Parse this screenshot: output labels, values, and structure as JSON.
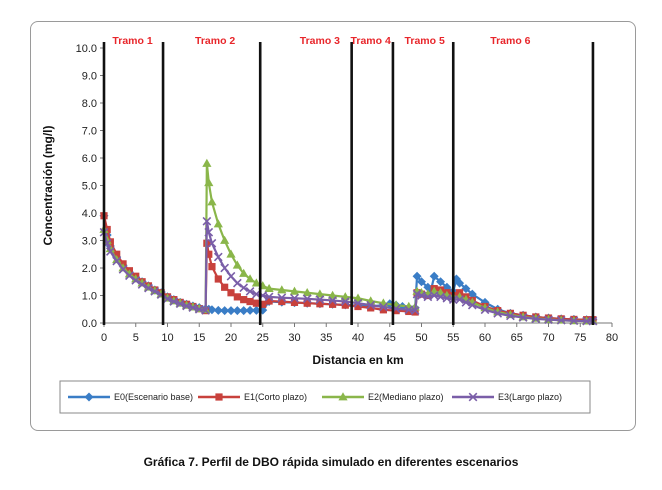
{
  "caption": "Gráfica 7. Perfil de DBO rápida simulado en diferentes escenarios",
  "chart_data": {
    "type": "line",
    "title": "",
    "xlabel": "Distancia en km",
    "ylabel": "Concentración (mg/l)",
    "xlim": [
      0,
      80
    ],
    "ylim": [
      0,
      10
    ],
    "xticks": [
      "0",
      "5",
      "10",
      "15",
      "20",
      "25",
      "30",
      "35",
      "40",
      "45",
      "50",
      "55",
      "60",
      "65",
      "70",
      "75",
      "80"
    ],
    "yticks": [
      "0.0",
      "1.0",
      "2.0",
      "3.0",
      "4.0",
      "5.0",
      "6.0",
      "7.0",
      "8.0",
      "9.0",
      "10.0"
    ],
    "grid": false,
    "legend_position": "bottom",
    "tramo_color": "#e8262b",
    "boundaries": [
      0,
      9.3,
      24.6,
      39,
      45.5,
      55,
      77
    ],
    "tramos": [
      {
        "label": "Tramo 1",
        "x": 4.5
      },
      {
        "label": "Tramo 2",
        "x": 17.5
      },
      {
        "label": "Tramo 3",
        "x": 34
      },
      {
        "label": "Tramo 4",
        "x": 42
      },
      {
        "label": "Tramo 5",
        "x": 50.5
      },
      {
        "label": "Tramo 6",
        "x": 64
      }
    ],
    "series": [
      {
        "name": "E0(Escenario base)",
        "color": "#3a7dc6",
        "marker": "diamond",
        "points": [
          [
            0,
            3.9
          ],
          [
            0.5,
            3.2
          ],
          [
            1,
            2.8
          ],
          [
            2,
            2.4
          ],
          [
            3,
            2.1
          ],
          [
            4,
            1.85
          ],
          [
            5,
            1.65
          ],
          [
            6,
            1.5
          ],
          [
            7,
            1.35
          ],
          [
            8,
            1.2
          ],
          [
            9,
            1.1
          ],
          [
            10,
            0.95
          ],
          [
            11,
            0.85
          ],
          [
            12,
            0.75
          ],
          [
            13,
            0.68
          ],
          [
            14,
            0.62
          ],
          [
            15,
            0.56
          ],
          [
            16,
            0.52
          ],
          [
            16.5,
            0.5
          ],
          [
            17,
            0.48
          ],
          [
            18,
            0.46
          ],
          [
            19,
            0.45
          ],
          [
            20,
            0.45
          ],
          [
            21,
            0.45
          ],
          [
            22,
            0.45
          ],
          [
            23,
            0.46
          ],
          [
            24,
            0.46
          ],
          [
            25,
            0.47
          ],
          [
            26,
            0.78
          ],
          [
            28,
            0.76
          ],
          [
            30,
            0.74
          ],
          [
            32,
            0.72
          ],
          [
            34,
            0.7
          ],
          [
            36,
            0.68
          ],
          [
            38,
            0.66
          ],
          [
            40,
            0.63
          ],
          [
            42,
            0.6
          ],
          [
            44,
            0.65
          ],
          [
            45,
            0.7
          ],
          [
            46,
            0.65
          ],
          [
            47,
            0.6
          ],
          [
            48,
            0.56
          ],
          [
            49,
            0.55
          ],
          [
            49.3,
            1.7
          ],
          [
            50,
            1.5
          ],
          [
            51,
            1.3
          ],
          [
            51.5,
            1.2
          ],
          [
            52,
            1.7
          ],
          [
            53,
            1.5
          ],
          [
            54,
            1.3
          ],
          [
            55,
            1.15
          ],
          [
            55.5,
            1.6
          ],
          [
            56,
            1.45
          ],
          [
            57,
            1.25
          ],
          [
            58,
            1.05
          ],
          [
            60,
            0.75
          ],
          [
            62,
            0.5
          ],
          [
            64,
            0.35
          ],
          [
            66,
            0.28
          ],
          [
            68,
            0.22
          ],
          [
            70,
            0.18
          ],
          [
            72,
            0.15
          ],
          [
            74,
            0.13
          ],
          [
            76,
            0.12
          ],
          [
            77,
            0.12
          ]
        ]
      },
      {
        "name": "E1(Corto plazo)",
        "color": "#c8413c",
        "marker": "square",
        "points": [
          [
            0,
            3.9
          ],
          [
            0.5,
            3.4
          ],
          [
            1,
            2.95
          ],
          [
            2,
            2.5
          ],
          [
            3,
            2.15
          ],
          [
            4,
            1.9
          ],
          [
            5,
            1.7
          ],
          [
            6,
            1.5
          ],
          [
            7,
            1.35
          ],
          [
            8,
            1.2
          ],
          [
            9,
            1.1
          ],
          [
            10,
            0.95
          ],
          [
            11,
            0.85
          ],
          [
            12,
            0.75
          ],
          [
            13,
            0.68
          ],
          [
            14,
            0.6
          ],
          [
            15,
            0.52
          ],
          [
            16,
            0.45
          ],
          [
            16.2,
            2.9
          ],
          [
            16.5,
            2.5
          ],
          [
            17,
            2.05
          ],
          [
            18,
            1.6
          ],
          [
            19,
            1.3
          ],
          [
            20,
            1.1
          ],
          [
            21,
            0.95
          ],
          [
            22,
            0.85
          ],
          [
            23,
            0.78
          ],
          [
            24,
            0.72
          ],
          [
            25,
            0.68
          ],
          [
            26,
            0.8
          ],
          [
            28,
            0.78
          ],
          [
            30,
            0.75
          ],
          [
            32,
            0.72
          ],
          [
            34,
            0.7
          ],
          [
            36,
            0.68
          ],
          [
            38,
            0.65
          ],
          [
            40,
            0.6
          ],
          [
            42,
            0.55
          ],
          [
            44,
            0.48
          ],
          [
            46,
            0.45
          ],
          [
            48,
            0.42
          ],
          [
            49,
            0.4
          ],
          [
            49.3,
            1.1
          ],
          [
            50,
            1.05
          ],
          [
            51,
            1.0
          ],
          [
            52,
            1.25
          ],
          [
            53,
            1.2
          ],
          [
            54,
            1.1
          ],
          [
            55,
            1.0
          ],
          [
            56,
            1.1
          ],
          [
            57,
            0.95
          ],
          [
            58,
            0.82
          ],
          [
            60,
            0.6
          ],
          [
            62,
            0.45
          ],
          [
            64,
            0.35
          ],
          [
            66,
            0.28
          ],
          [
            68,
            0.22
          ],
          [
            70,
            0.18
          ],
          [
            72,
            0.15
          ],
          [
            74,
            0.13
          ],
          [
            76,
            0.12
          ],
          [
            77,
            0.12
          ]
        ]
      },
      {
        "name": "E2(Mediano plazo)",
        "color": "#8ab64a",
        "marker": "triangle",
        "points": [
          [
            0,
            3.4
          ],
          [
            0.5,
            3.0
          ],
          [
            1,
            2.7
          ],
          [
            2,
            2.3
          ],
          [
            3,
            2.0
          ],
          [
            4,
            1.78
          ],
          [
            5,
            1.6
          ],
          [
            6,
            1.45
          ],
          [
            7,
            1.3
          ],
          [
            8,
            1.17
          ],
          [
            9,
            1.05
          ],
          [
            10,
            0.9
          ],
          [
            11,
            0.8
          ],
          [
            12,
            0.72
          ],
          [
            13,
            0.64
          ],
          [
            14,
            0.58
          ],
          [
            15,
            0.52
          ],
          [
            16,
            0.48
          ],
          [
            16.2,
            5.8
          ],
          [
            16.5,
            5.1
          ],
          [
            17,
            4.4
          ],
          [
            18,
            3.6
          ],
          [
            19,
            3.0
          ],
          [
            20,
            2.5
          ],
          [
            21,
            2.1
          ],
          [
            22,
            1.8
          ],
          [
            23,
            1.6
          ],
          [
            24,
            1.45
          ],
          [
            25,
            1.35
          ],
          [
            26,
            1.25
          ],
          [
            28,
            1.2
          ],
          [
            30,
            1.15
          ],
          [
            32,
            1.1
          ],
          [
            34,
            1.05
          ],
          [
            36,
            1.0
          ],
          [
            38,
            0.95
          ],
          [
            40,
            0.9
          ],
          [
            42,
            0.8
          ],
          [
            44,
            0.72
          ],
          [
            46,
            0.65
          ],
          [
            48,
            0.6
          ],
          [
            49,
            0.58
          ],
          [
            49.3,
            1.15
          ],
          [
            50,
            1.1
          ],
          [
            51,
            1.05
          ],
          [
            52,
            1.15
          ],
          [
            53,
            1.1
          ],
          [
            54,
            1.0
          ],
          [
            55,
            0.95
          ],
          [
            56,
            0.95
          ],
          [
            57,
            0.85
          ],
          [
            58,
            0.75
          ],
          [
            60,
            0.55
          ],
          [
            62,
            0.4
          ],
          [
            64,
            0.3
          ],
          [
            66,
            0.22
          ],
          [
            68,
            0.17
          ],
          [
            70,
            0.13
          ],
          [
            72,
            0.1
          ],
          [
            74,
            0.08
          ],
          [
            76,
            0.07
          ],
          [
            77,
            0.07
          ]
        ]
      },
      {
        "name": "E3(Largo plazo)",
        "color": "#7a5ea8",
        "marker": "x",
        "points": [
          [
            0,
            3.3
          ],
          [
            0.5,
            2.9
          ],
          [
            1,
            2.6
          ],
          [
            2,
            2.25
          ],
          [
            3,
            1.95
          ],
          [
            4,
            1.72
          ],
          [
            5,
            1.55
          ],
          [
            6,
            1.4
          ],
          [
            7,
            1.27
          ],
          [
            8,
            1.15
          ],
          [
            9,
            1.03
          ],
          [
            10,
            0.88
          ],
          [
            11,
            0.78
          ],
          [
            12,
            0.7
          ],
          [
            13,
            0.62
          ],
          [
            14,
            0.56
          ],
          [
            15,
            0.5
          ],
          [
            16,
            0.46
          ],
          [
            16.2,
            3.7
          ],
          [
            16.5,
            3.3
          ],
          [
            17,
            2.9
          ],
          [
            18,
            2.4
          ],
          [
            19,
            2.0
          ],
          [
            20,
            1.7
          ],
          [
            21,
            1.45
          ],
          [
            22,
            1.28
          ],
          [
            23,
            1.15
          ],
          [
            24,
            1.05
          ],
          [
            25,
            1.0
          ],
          [
            26,
            0.95
          ],
          [
            28,
            0.92
          ],
          [
            30,
            0.9
          ],
          [
            32,
            0.88
          ],
          [
            34,
            0.85
          ],
          [
            36,
            0.82
          ],
          [
            38,
            0.78
          ],
          [
            40,
            0.72
          ],
          [
            42,
            0.65
          ],
          [
            44,
            0.58
          ],
          [
            46,
            0.52
          ],
          [
            48,
            0.48
          ],
          [
            49,
            0.45
          ],
          [
            49.3,
            1.05
          ],
          [
            50,
            1.0
          ],
          [
            51,
            0.95
          ],
          [
            52,
            1.0
          ],
          [
            53,
            0.95
          ],
          [
            54,
            0.9
          ],
          [
            55,
            0.85
          ],
          [
            56,
            0.85
          ],
          [
            57,
            0.75
          ],
          [
            58,
            0.65
          ],
          [
            60,
            0.48
          ],
          [
            62,
            0.35
          ],
          [
            64,
            0.26
          ],
          [
            66,
            0.2
          ],
          [
            68,
            0.15
          ],
          [
            70,
            0.12
          ],
          [
            72,
            0.1
          ],
          [
            74,
            0.08
          ],
          [
            76,
            0.07
          ],
          [
            77,
            0.07
          ]
        ]
      }
    ]
  }
}
